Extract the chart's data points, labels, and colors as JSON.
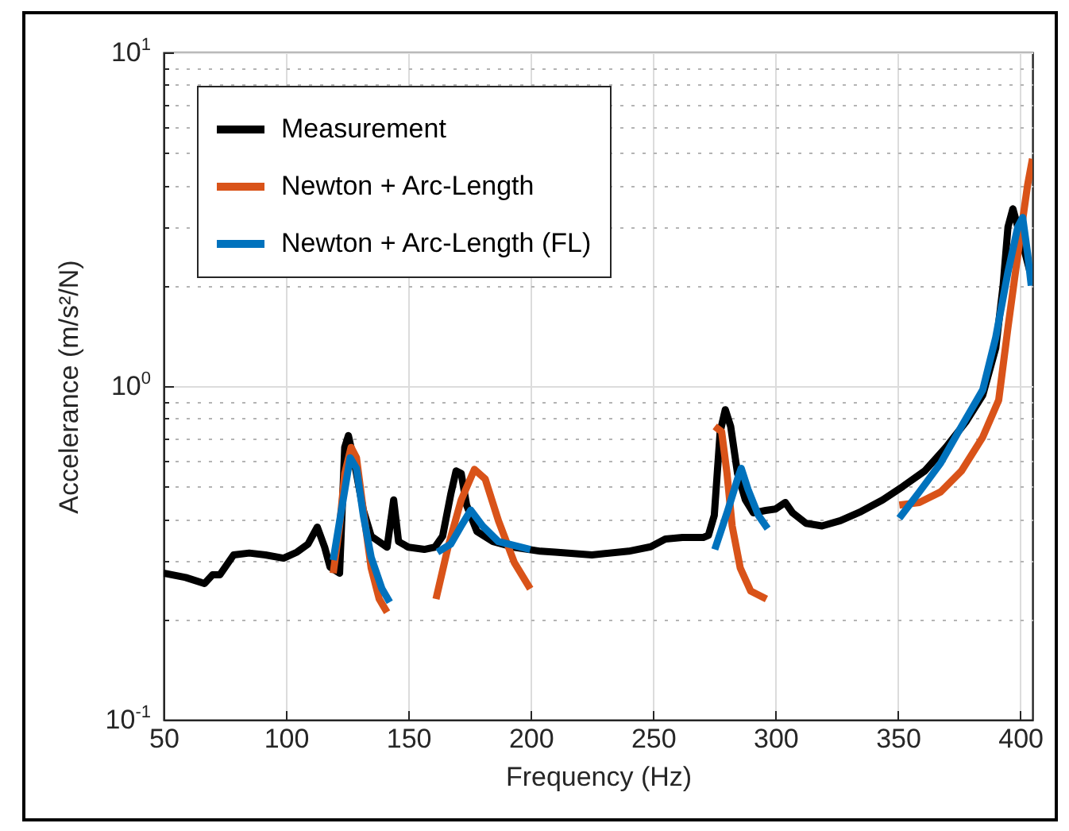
{
  "chart_data": {
    "type": "line",
    "xlabel": "Frequency (Hz)",
    "ylabel": "Accelerance (m/s²/N)",
    "log": "y",
    "grid": true,
    "legend": "top left",
    "line_style": "solid",
    "marker": "none",
    "xlim": [
      50,
      405
    ],
    "xticks": [
      50,
      100,
      150,
      200,
      250,
      300,
      350,
      400
    ],
    "ylim": [
      0.1,
      10
    ],
    "yticks": [
      {
        "value": 0.1,
        "label": "10$^{-1}$"
      },
      {
        "value": 0.2,
        "label": null
      },
      {
        "value": 0.3,
        "label": null
      },
      {
        "value": 0.4,
        "label": null
      },
      {
        "value": 0.5,
        "label": null
      },
      {
        "value": 0.6,
        "label": null
      },
      {
        "value": 0.7,
        "label": null
      },
      {
        "value": 0.8,
        "label": null
      },
      {
        "value": 0.9,
        "label": null
      },
      {
        "value": 1,
        "label": "10$^{0}$"
      },
      {
        "value": 2,
        "label": null
      },
      {
        "value": 3,
        "label": null
      },
      {
        "value": 4,
        "label": null
      },
      {
        "value": 5,
        "label": null
      },
      {
        "value": 6,
        "label": null
      },
      {
        "value": 7,
        "label": null
      },
      {
        "value": 8,
        "label": null
      },
      {
        "value": 9,
        "label": null
      },
      {
        "value": 10,
        "label": "10$^{1}$"
      }
    ],
    "series": [
      {
        "name": "Measurement",
        "color": "#000000",
        "x": [
          50,
          59,
          66.7,
          70,
          73,
          78.6,
          85,
          91.6,
          99,
          104.5,
          109,
          112.8,
          115.8,
          118,
          121.9,
          124,
          125.5,
          128,
          131.6,
          134.8,
          141.3,
          144,
          146,
          150,
          156.5,
          160.8,
          164,
          167.3,
          169.5,
          171.6,
          173.8,
          178,
          184.6,
          193,
          204,
          210,
          225,
          240,
          249,
          255,
          262,
          270.5,
          272.6,
          275,
          277.4,
          279.5,
          281.7,
          284.5,
          287.7,
          291,
          296,
          300,
          304,
          307,
          312.5,
          319,
          326.5,
          335,
          343.8,
          352,
          361,
          369.6,
          378,
          384.7,
          390,
          393,
          395,
          397,
          399,
          402,
          404
        ],
        "values": [
          0.275,
          0.267,
          0.256,
          0.272,
          0.272,
          0.312,
          0.316,
          0.312,
          0.305,
          0.318,
          0.336,
          0.378,
          0.329,
          0.287,
          0.275,
          0.655,
          0.711,
          0.588,
          0.425,
          0.355,
          0.329,
          0.456,
          0.342,
          0.329,
          0.324,
          0.329,
          0.355,
          0.473,
          0.557,
          0.547,
          0.44,
          0.367,
          0.342,
          0.329,
          0.32,
          0.318,
          0.312,
          0.32,
          0.33,
          0.348,
          0.352,
          0.352,
          0.357,
          0.41,
          0.73,
          0.85,
          0.757,
          0.547,
          0.456,
          0.417,
          0.424,
          0.428,
          0.448,
          0.417,
          0.388,
          0.381,
          0.395,
          0.421,
          0.456,
          0.5,
          0.557,
          0.655,
          0.785,
          0.94,
          1.3,
          2.0,
          3.0,
          3.4,
          3.0,
          2.5,
          2.2
        ]
      },
      {
        "name": "Newton + Arc-Length",
        "color": "#d95319",
        "x": [
          119.3,
          121.9,
          124,
          126.6,
          128.8,
          131.6,
          134.8,
          138.1,
          141.3,
          150,
          161.3,
          166.2,
          171.6,
          177,
          181.4,
          186.8,
          193.3,
          199.8,
          240,
          275.2,
          278,
          280.2,
          282.3,
          285.6,
          289.9,
          296.3,
          320,
          350.6,
          358.8,
          367.5,
          376,
          384.7,
          391.2,
          395,
          400,
          403,
          405
        ],
        "values": [
          0.275,
          0.381,
          0.547,
          0.655,
          0.61,
          0.425,
          0.285,
          0.23,
          0.21,
          null,
          0.23,
          0.329,
          0.456,
          0.563,
          0.527,
          0.395,
          0.296,
          0.247,
          null,
          0.757,
          0.73,
          0.547,
          0.381,
          0.285,
          0.243,
          0.23,
          null,
          0.44,
          0.448,
          0.482,
          0.557,
          0.704,
          0.908,
          1.5,
          2.8,
          4.0,
          4.8
        ]
      },
      {
        "name": "Newton + Arc-Length (FL)",
        "color": "#0072bd",
        "x": [
          119.3,
          123,
          126.2,
          128.8,
          131.6,
          134.8,
          139.2,
          142.4,
          150,
          161.9,
          167.3,
          171.6,
          175.5,
          180.3,
          186.8,
          199.8,
          240,
          275.2,
          280.2,
          284.5,
          286,
          288.8,
          293,
          296.8,
          320,
          350.6,
          358.8,
          367.5,
          376,
          384.7,
          390,
          395,
          399,
          401,
          403,
          404.5
        ],
        "values": [
          0.301,
          0.44,
          0.61,
          0.567,
          0.41,
          0.307,
          0.247,
          0.225,
          null,
          0.318,
          0.336,
          0.381,
          0.425,
          0.381,
          0.342,
          0.324,
          null,
          0.324,
          0.417,
          0.527,
          0.567,
          0.49,
          0.41,
          0.374,
          null,
          0.402,
          0.482,
          0.588,
          0.757,
          0.975,
          1.4,
          2.2,
          3.0,
          3.2,
          2.5,
          2.0
        ]
      }
    ]
  }
}
